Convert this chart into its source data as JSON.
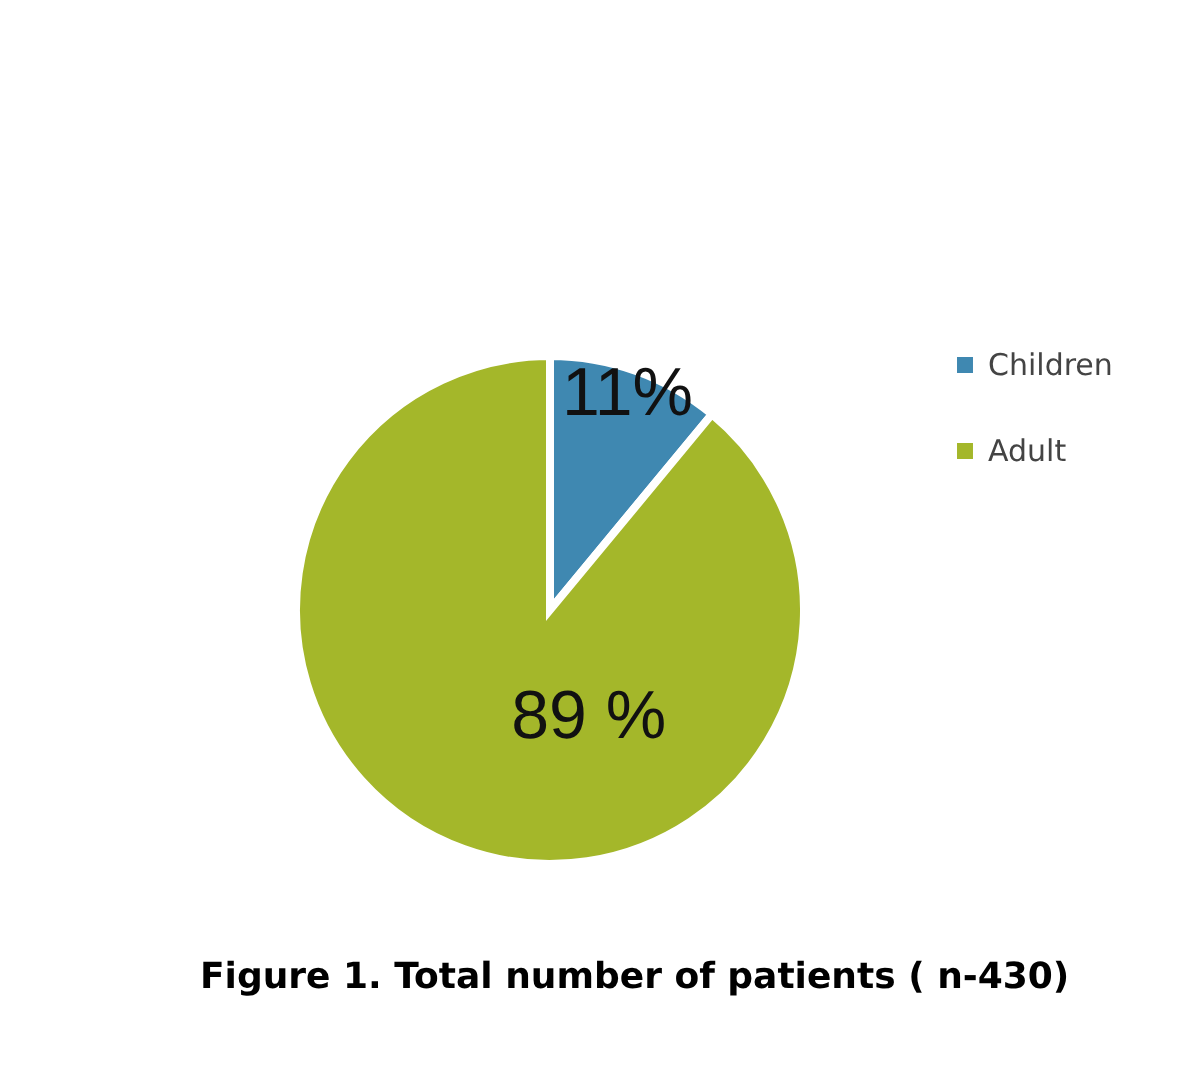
{
  "chart_data": {
    "type": "pie",
    "title": "Figure 1. Total number of patients ( n-430)",
    "categories": [
      "Children",
      "Adult"
    ],
    "values": [
      11,
      89
    ],
    "colors": [
      "#3f88b1",
      "#a4b72a"
    ],
    "value_labels": [
      "11%",
      "89 %"
    ],
    "legend": "right"
  }
}
